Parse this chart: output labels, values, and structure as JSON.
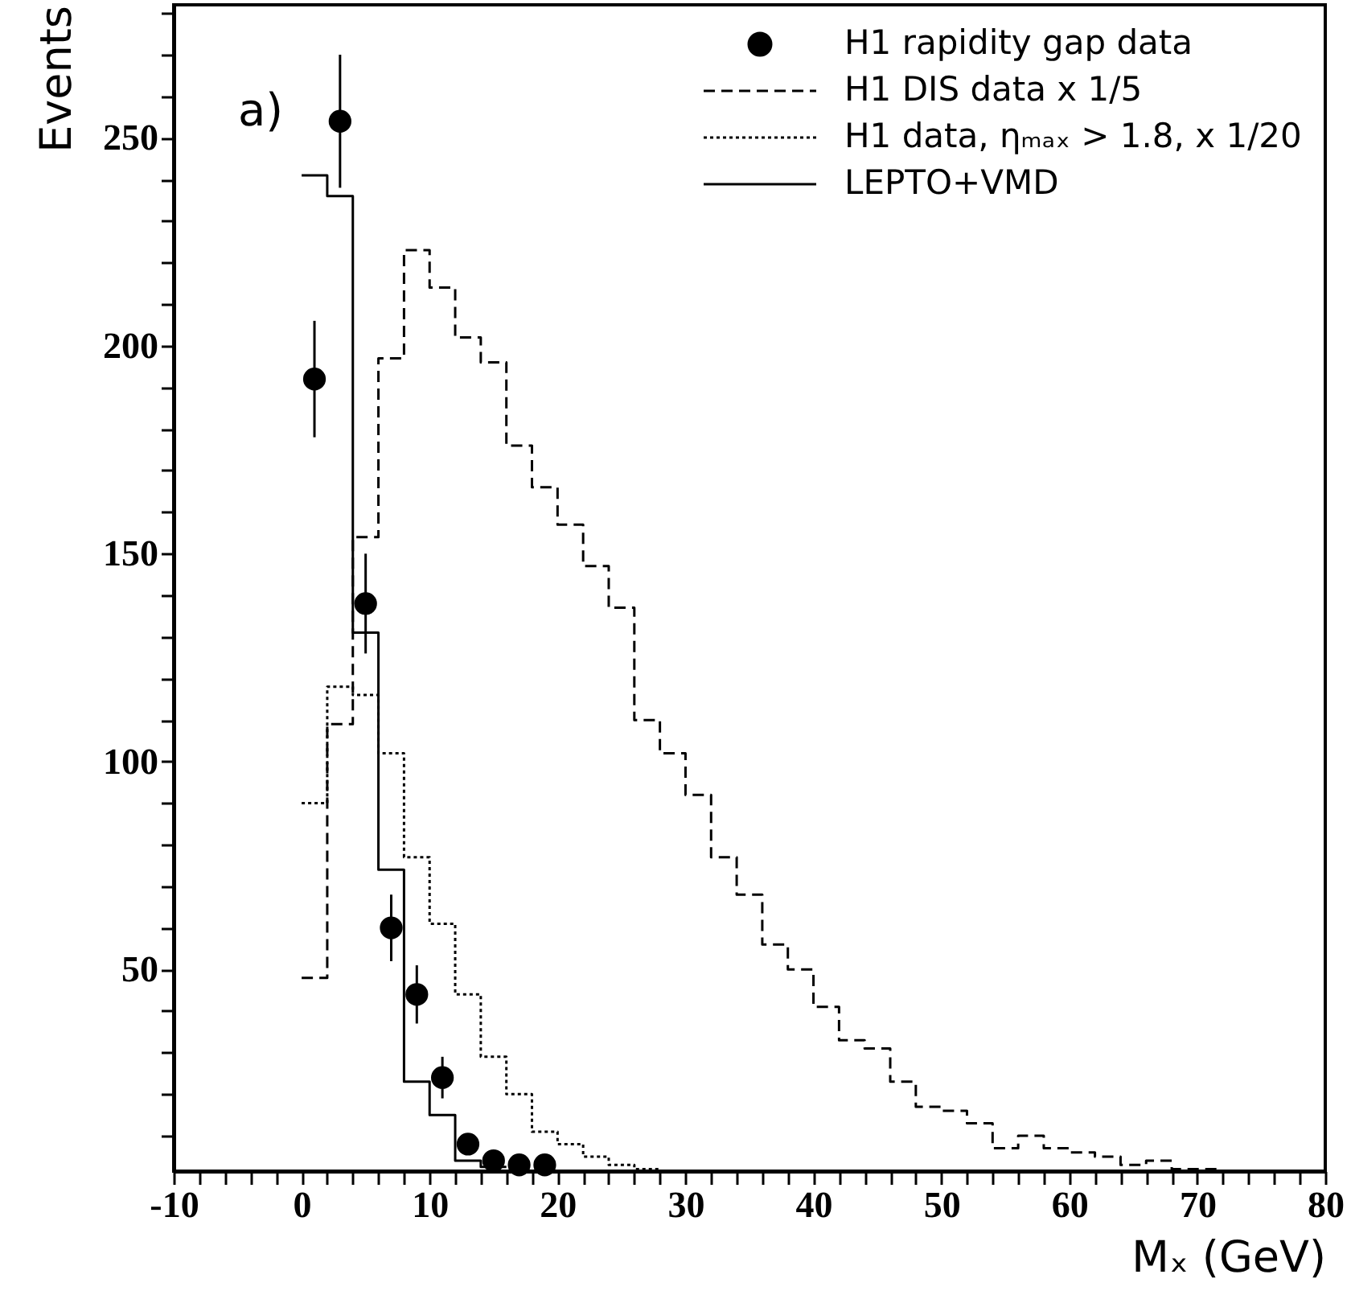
{
  "chart_data": {
    "type": "step",
    "xlabel": "Mₓ (GeV)",
    "ylabel": "Events",
    "annotations": [
      "a)"
    ],
    "series": [
      {
        "type": "scatter",
        "name": "H1 rapidity gap data",
        "color": "#000000",
        "marker": "circle",
        "x": [
          1,
          3,
          5,
          7,
          9,
          11,
          13,
          15,
          17,
          19
        ],
        "values": [
          192,
          254,
          138,
          60,
          44,
          24,
          8,
          4,
          3,
          3
        ],
        "errors": [
          14,
          16,
          12,
          8,
          7,
          5,
          2,
          null,
          null,
          null
        ]
      },
      {
        "name": "H1 DIS data x 1/5",
        "color": "#000000",
        "line_style": "dashed",
        "x": [
          0,
          2,
          4,
          6,
          8,
          10,
          12,
          14,
          16,
          18,
          20,
          22,
          24,
          26,
          28,
          30,
          32,
          34,
          36,
          38,
          40,
          42,
          44,
          46,
          48,
          50,
          52,
          54,
          56,
          58,
          60,
          62,
          64,
          66,
          68,
          70,
          72
        ],
        "values": [
          48,
          109,
          154,
          197,
          223,
          214,
          202,
          196,
          176,
          166,
          157,
          147,
          137,
          110,
          102,
          92,
          77,
          68,
          56,
          50,
          41,
          33,
          31,
          23,
          17,
          16,
          13,
          7,
          10,
          7,
          6,
          5,
          3,
          4,
          2,
          2,
          2
        ]
      },
      {
        "name": "H1 data, ηₘₐₓ > 1.8, x 1/20",
        "color": "#000000",
        "line_style": "dotted",
        "x": [
          0,
          2,
          4,
          6,
          8,
          10,
          12,
          14,
          16,
          18,
          20,
          22,
          24,
          26,
          28
        ],
        "values": [
          90,
          118,
          116,
          102,
          77,
          61,
          44,
          29,
          20,
          11,
          8,
          5,
          3,
          2,
          2
        ]
      },
      {
        "name": "LEPTO+VMD",
        "color": "#000000",
        "line_style": "solid",
        "x": [
          0,
          2,
          4,
          6,
          8,
          10,
          12,
          14,
          16
        ],
        "values": [
          241,
          236,
          131,
          74,
          23,
          15,
          4,
          2.5,
          2.5
        ]
      }
    ],
    "xlim": [
      -10,
      80
    ],
    "ylim": [
      1.5,
      282
    ],
    "xticks": [
      -10,
      {
        "value": -8,
        "label": null
      },
      {
        "value": -6,
        "label": null
      },
      {
        "value": -4,
        "label": null
      },
      {
        "value": -2,
        "label": null
      },
      0,
      {
        "value": 2,
        "label": null
      },
      {
        "value": 4,
        "label": null
      },
      {
        "value": 6,
        "label": null
      },
      {
        "value": 8,
        "label": null
      },
      10,
      {
        "value": 12,
        "label": null
      },
      {
        "value": 14,
        "label": null
      },
      {
        "value": 16,
        "label": null
      },
      {
        "value": 18,
        "label": null
      },
      20,
      {
        "value": 22,
        "label": null
      },
      {
        "value": 24,
        "label": null
      },
      {
        "value": 26,
        "label": null
      },
      {
        "value": 28,
        "label": null
      },
      30,
      {
        "value": 32,
        "label": null
      },
      {
        "value": 34,
        "label": null
      },
      {
        "value": 36,
        "label": null
      },
      {
        "value": 38,
        "label": null
      },
      40,
      {
        "value": 42,
        "label": null
      },
      {
        "value": 44,
        "label": null
      },
      {
        "value": 46,
        "label": null
      },
      {
        "value": 48,
        "label": null
      },
      50,
      {
        "value": 52,
        "label": null
      },
      {
        "value": 54,
        "label": null
      },
      {
        "value": 56,
        "label": null
      },
      {
        "value": 58,
        "label": null
      },
      60,
      {
        "value": 62,
        "label": null
      },
      {
        "value": 64,
        "label": null
      },
      {
        "value": 66,
        "label": null
      },
      {
        "value": 68,
        "label": null
      },
      70,
      {
        "value": 72,
        "label": null
      },
      {
        "value": 74,
        "label": null
      },
      {
        "value": 76,
        "label": null
      },
      {
        "value": 78,
        "label": null
      },
      80
    ],
    "yticks": [
      {
        "value": 10,
        "label": null
      },
      {
        "value": 20,
        "label": null
      },
      {
        "value": 30,
        "label": null
      },
      {
        "value": 40,
        "label": null
      },
      50,
      {
        "value": 60,
        "label": null
      },
      {
        "value": 70,
        "label": null
      },
      {
        "value": 80,
        "label": null
      },
      {
        "value": 90,
        "label": null
      },
      100,
      {
        "value": 110,
        "label": null
      },
      {
        "value": 120,
        "label": null
      },
      {
        "value": 130,
        "label": null
      },
      {
        "value": 140,
        "label": null
      },
      150,
      {
        "value": 160,
        "label": null
      },
      {
        "value": 170,
        "label": null
      },
      {
        "value": 180,
        "label": null
      },
      {
        "value": 190,
        "label": null
      },
      200,
      {
        "value": 210,
        "label": null
      },
      {
        "value": 220,
        "label": null
      },
      {
        "value": 230,
        "label": null
      },
      {
        "value": 240,
        "label": null
      },
      250,
      {
        "value": 260,
        "label": null
      },
      {
        "value": 270,
        "label": null
      },
      {
        "value": 280,
        "label": null
      }
    ],
    "legend": "top right",
    "grid": false
  }
}
